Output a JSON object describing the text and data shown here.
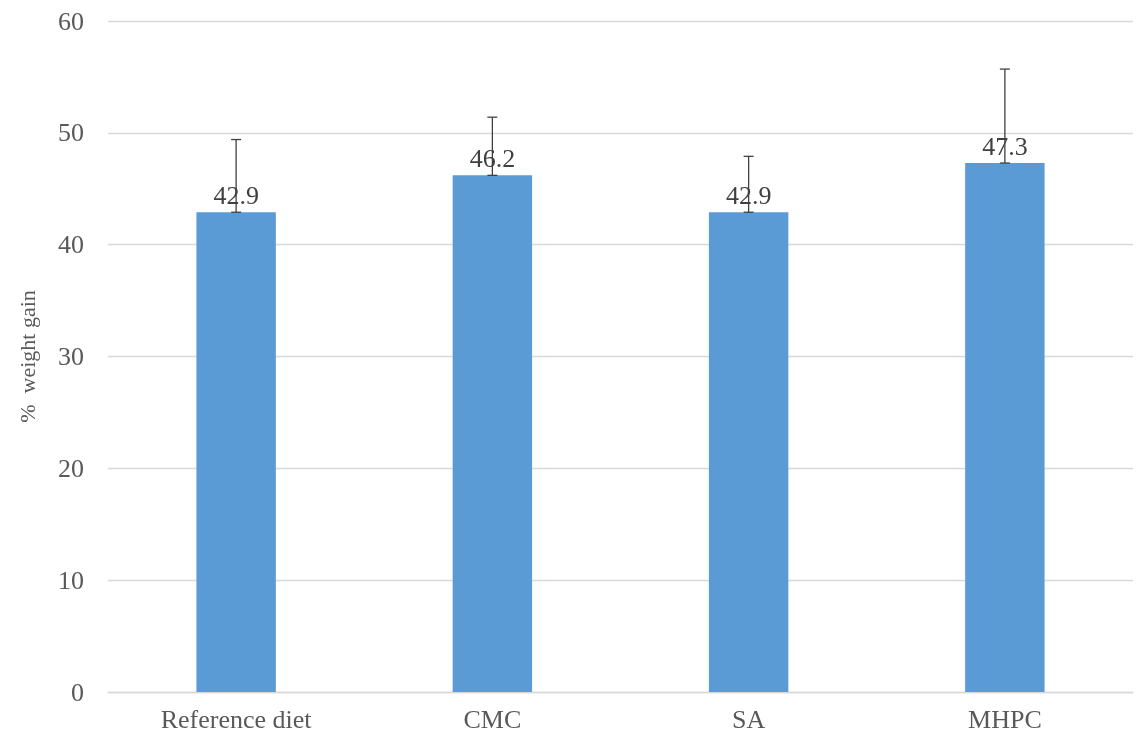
{
  "chart_data": {
    "type": "bar",
    "ylabel": "%  weight gain",
    "categories": [
      "Reference diet",
      "CMC",
      "SA",
      "MHPC"
    ],
    "values": [
      42.9,
      46.2,
      42.9,
      47.3
    ],
    "errors": [
      [
        42.9,
        49.4
      ],
      [
        46.2,
        51.4
      ],
      [
        42.9,
        47.9
      ],
      [
        47.3,
        55.7
      ]
    ],
    "color": "#5b9bd5",
    "data_labels": true,
    "ylim": [
      0,
      60
    ],
    "yticks": [
      0,
      10,
      20,
      30,
      40,
      50,
      60
    ],
    "grid": "y"
  }
}
